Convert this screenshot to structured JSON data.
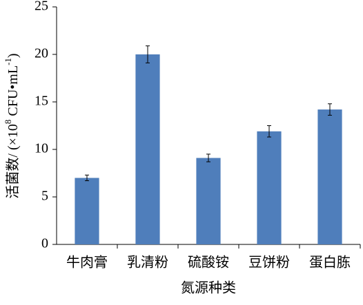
{
  "chart_data": {
    "type": "bar",
    "ylabel_parts": [
      "活菌数/ (×10",
      "8",
      " CFU•mL",
      "-1",
      ")"
    ],
    "xlabel": "氮源种类",
    "categories": [
      "牛肉膏",
      "乳清粉",
      "硫酸铵",
      "豆饼粉",
      "蛋白胨"
    ],
    "values": [
      7.0,
      20.0,
      9.1,
      11.9,
      14.2
    ],
    "errors": [
      0.3,
      0.9,
      0.4,
      0.6,
      0.6
    ],
    "color": "#4f7ebb",
    "ylim": [
      0,
      25
    ],
    "yticks": [
      0,
      5,
      10,
      15,
      20,
      25
    ],
    "grid": false
  }
}
